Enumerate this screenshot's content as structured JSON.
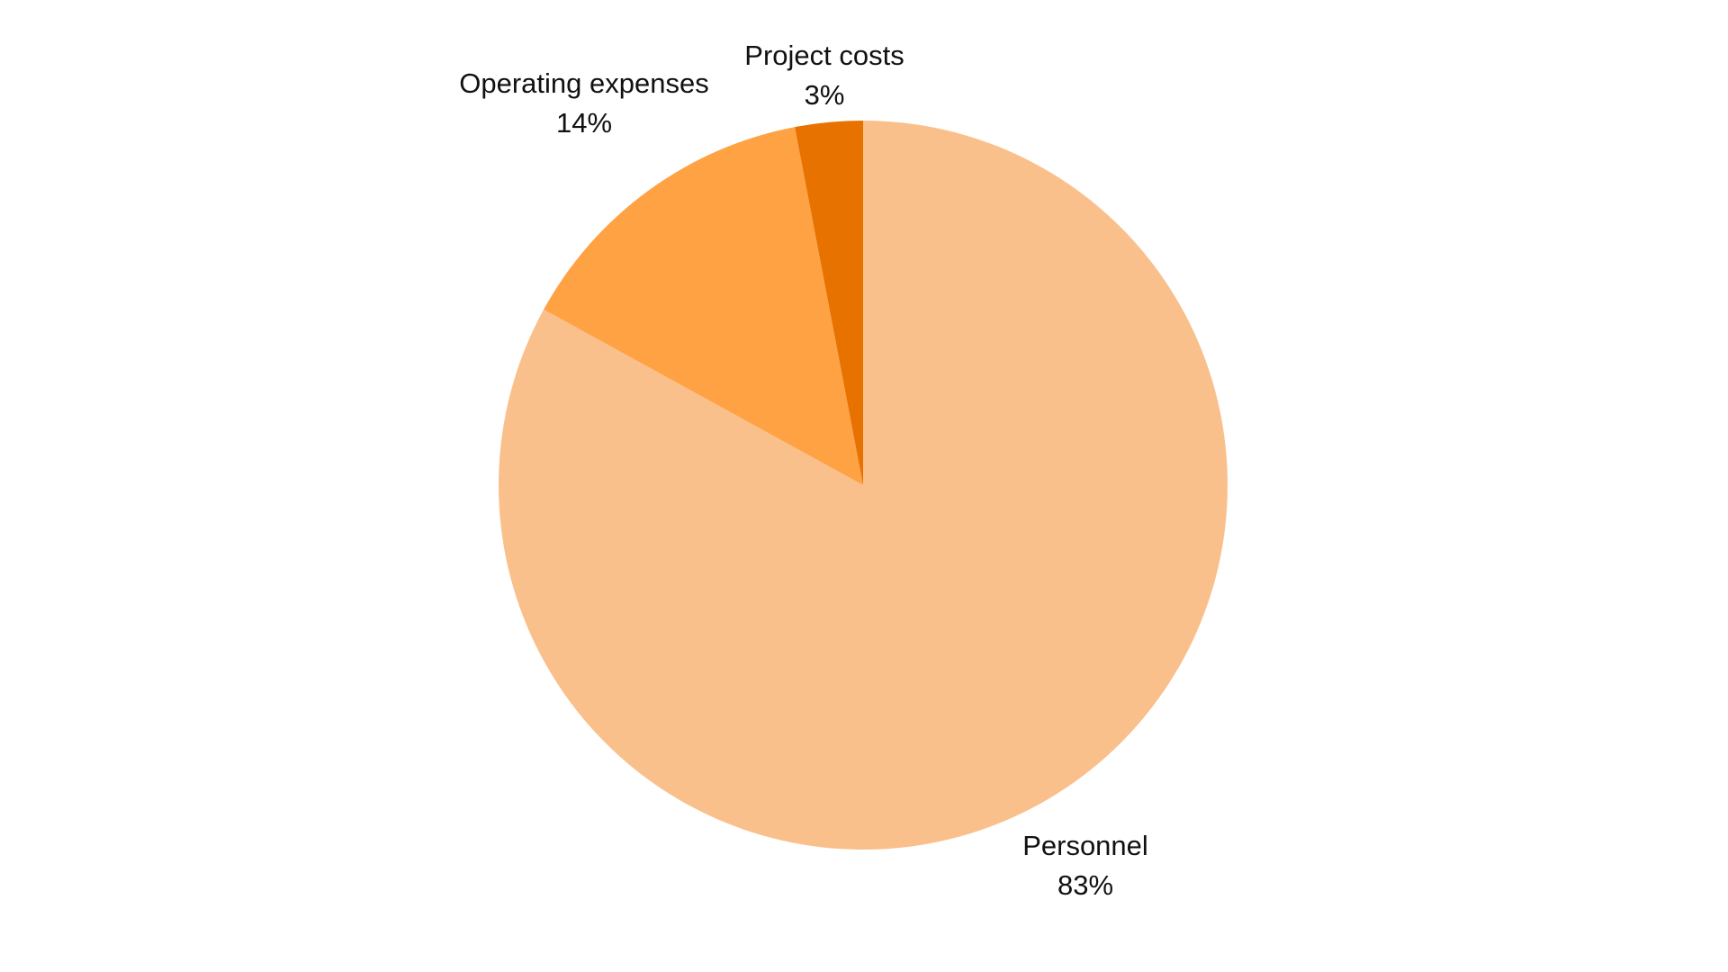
{
  "chart_data": {
    "type": "pie",
    "start_angle": "12 o'clock",
    "direction": "clockwise",
    "legend": "none",
    "slices": [
      {
        "label": "Personnel",
        "value": 83,
        "value_label": "83%",
        "color": "#FAC08C"
      },
      {
        "label": "Operating expenses",
        "value": 14,
        "value_label": "14%",
        "color": "#FEA244"
      },
      {
        "label": "Project costs",
        "value": 3,
        "value_label": "3%",
        "color": "#E77200"
      }
    ]
  }
}
